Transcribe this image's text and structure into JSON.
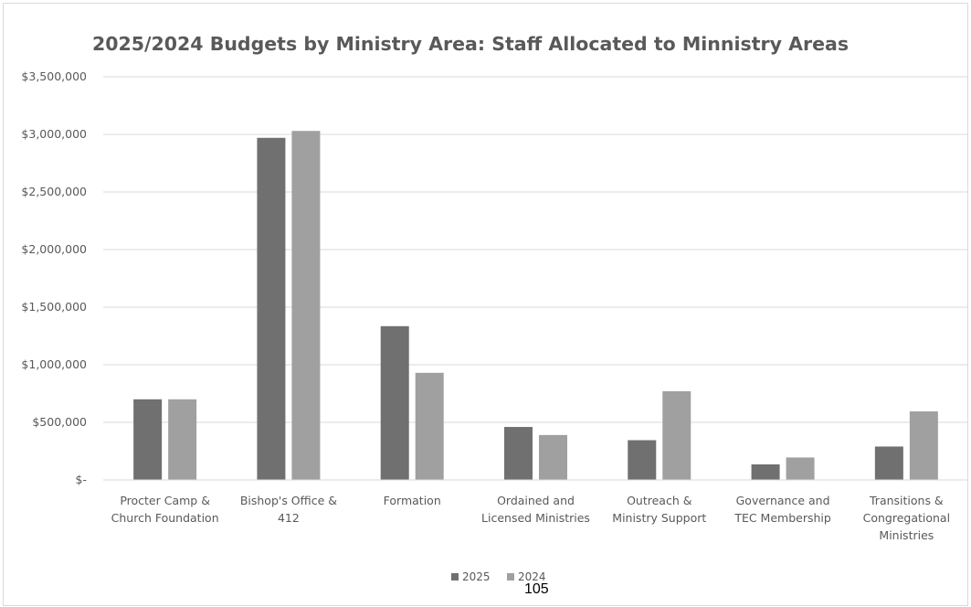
{
  "page_number": "105",
  "chart_data": {
    "type": "bar",
    "title": "2025/2024 Budgets by Ministry Area: Staff Allocated to Minnistry Areas",
    "xlabel": "",
    "ylabel": "",
    "ylim": [
      0,
      3500000
    ],
    "y_ticks": [
      0,
      500000,
      1000000,
      1500000,
      2000000,
      2500000,
      3000000,
      3500000
    ],
    "y_tick_labels": [
      "$-",
      "$500,000",
      "$1,000,000",
      "$1,500,000",
      "$2,000,000",
      "$2,500,000",
      "$3,000,000",
      "$3,500,000"
    ],
    "grid": true,
    "legend_position": "bottom",
    "categories": [
      [
        "Procter Camp &",
        "Church Foundation"
      ],
      [
        "Bishop's Office &",
        "412"
      ],
      [
        "Formation"
      ],
      [
        "Ordained and",
        "Licensed Ministries"
      ],
      [
        "Outreach &",
        "Ministry Support"
      ],
      [
        "Governance and",
        "TEC Membership"
      ],
      [
        "Transitions &",
        "Congregational",
        "Ministries"
      ]
    ],
    "series": [
      {
        "name": "2025",
        "color": "#707070",
        "values": [
          700000,
          2970000,
          1335000,
          460000,
          345000,
          135000,
          290000
        ]
      },
      {
        "name": "2024",
        "color": "#a0a0a0",
        "values": [
          700000,
          3030000,
          930000,
          390000,
          770000,
          195000,
          595000
        ]
      }
    ]
  }
}
